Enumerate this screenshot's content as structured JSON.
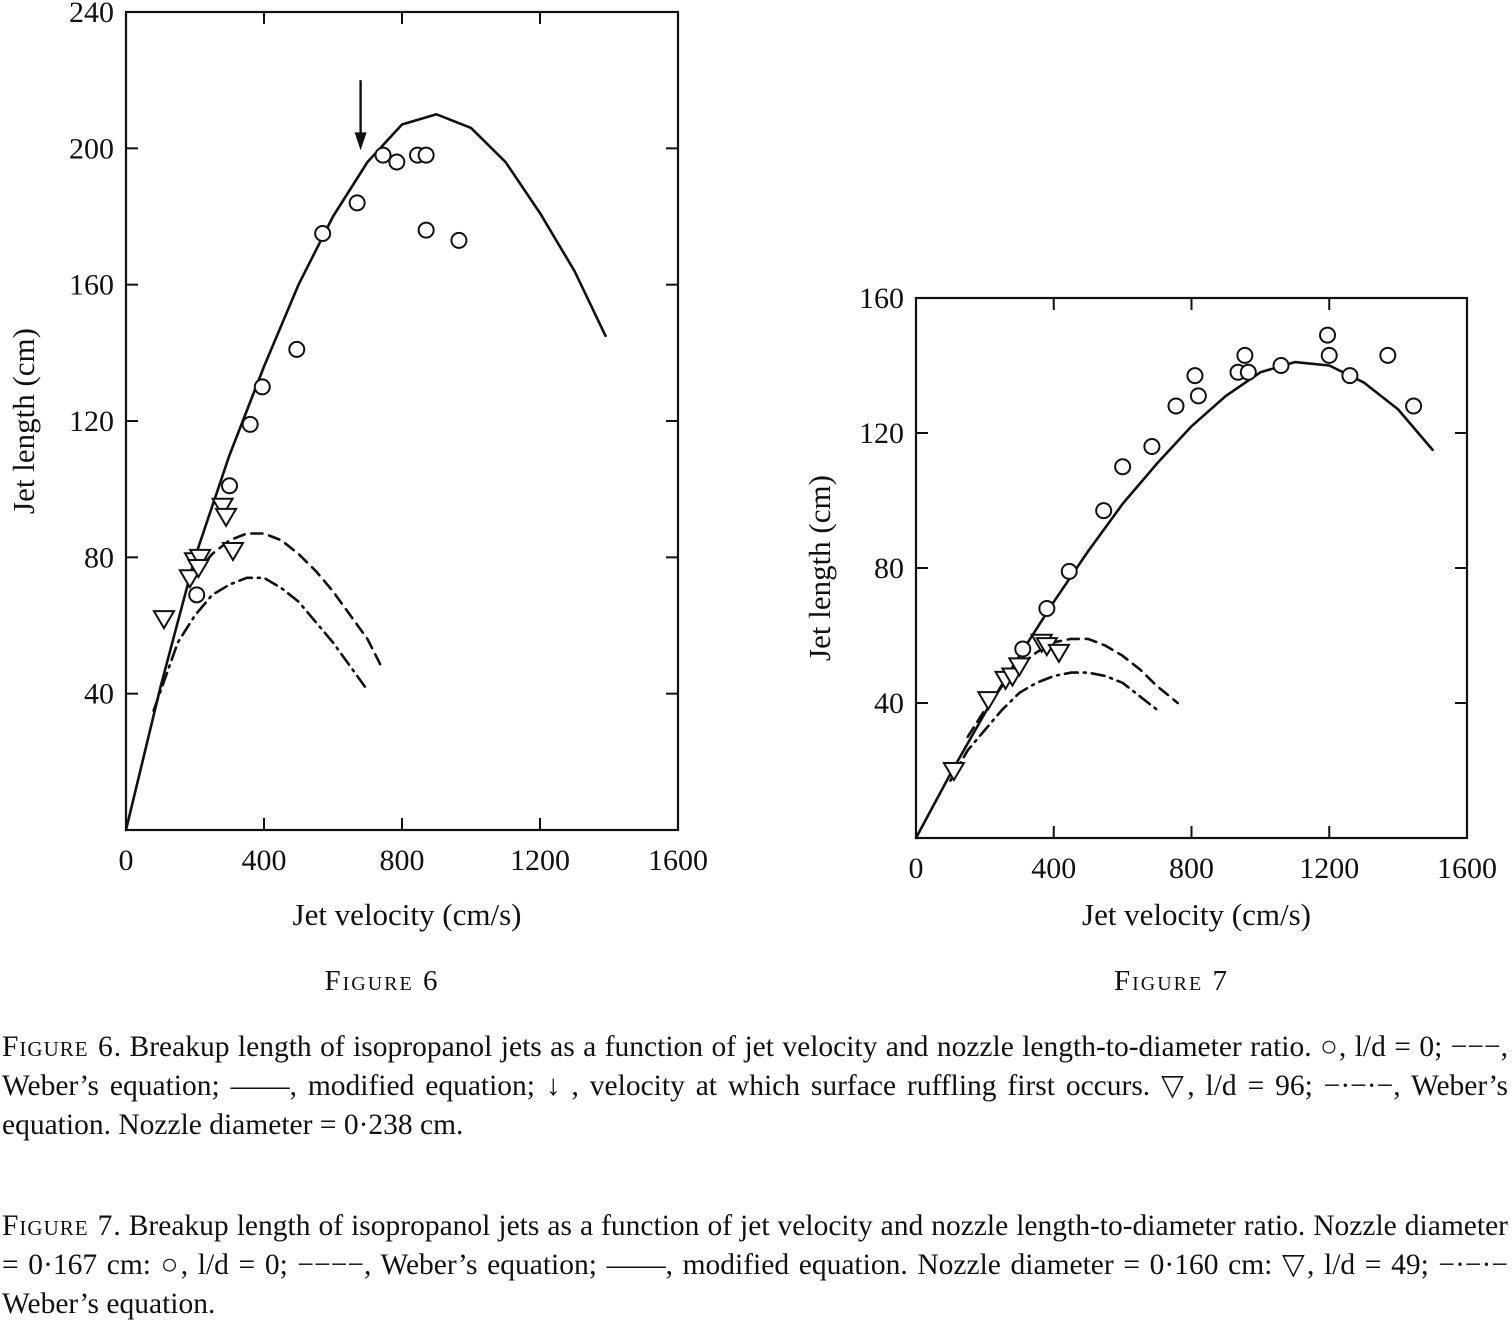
{
  "chart_data": [
    {
      "type": "line+scatter",
      "figure_label": "Figure 6",
      "xlabel": "Jet velocity (cm/s)",
      "ylabel": "Jet length (cm)",
      "xlim": [
        0,
        1600
      ],
      "ylim": [
        0,
        240
      ],
      "xticks": [
        0,
        400,
        800,
        1200,
        1600
      ],
      "yticks": [
        40,
        80,
        120,
        160,
        200,
        240
      ],
      "xtick_labels": [
        "0",
        "400",
        "800",
        "1200",
        "1600"
      ],
      "ytick_labels": [
        "40",
        "80",
        "120",
        "160",
        "200",
        "240"
      ],
      "series": [
        {
          "style": "solid-curve",
          "x": [
            0,
            100,
            200,
            300,
            400,
            500,
            600,
            700,
            800,
            900,
            1000,
            1100,
            1200,
            1300,
            1390
          ],
          "y": [
            0,
            42,
            80,
            110,
            136,
            160,
            180,
            196,
            207,
            210,
            206,
            196,
            181,
            164,
            145
          ]
        },
        {
          "style": "dashed-curve",
          "x": [
            200,
            250,
            300,
            350,
            400,
            450,
            500,
            550,
            600,
            650,
            700,
            740
          ],
          "y": [
            75,
            81,
            85,
            87,
            87,
            85,
            81,
            76,
            70,
            63,
            56,
            48
          ]
        },
        {
          "style": "dash-dot-curve",
          "x": [
            80,
            150,
            200,
            250,
            300,
            350,
            400,
            450,
            500,
            550,
            600,
            650,
            700
          ],
          "y": [
            35,
            55,
            63,
            69,
            72,
            74,
            74,
            71,
            67,
            61,
            55,
            48,
            41
          ]
        },
        {
          "style": "circle",
          "x": [
            205,
            300,
            360,
            395,
            495,
            570,
            670,
            745,
            785,
            845,
            870,
            870,
            965
          ],
          "y": [
            69,
            101,
            119,
            130,
            141,
            175,
            184,
            198,
            196,
            198,
            198,
            176,
            173
          ]
        },
        {
          "style": "triangle",
          "x": [
            110,
            185,
            200,
            215,
            210,
            280,
            290,
            310
          ],
          "y": [
            62,
            74,
            79,
            80,
            77,
            95,
            92,
            82
          ]
        }
      ],
      "annotations": [
        {
          "type": "arrow-down",
          "x": 680,
          "y_from": 220,
          "y_to": 200
        }
      ]
    },
    {
      "type": "line+scatter",
      "figure_label": "Figure 7",
      "xlabel": "Jet velocity (cm/s)",
      "ylabel": "Jet length (cm)",
      "xlim": [
        0,
        1600
      ],
      "ylim": [
        0,
        160
      ],
      "xticks": [
        0,
        400,
        800,
        1200,
        1600
      ],
      "yticks": [
        40,
        80,
        120,
        160
      ],
      "xtick_labels": [
        "0",
        "400",
        "800",
        "1200",
        "1600"
      ],
      "ytick_labels": [
        "40",
        "80",
        "120",
        "160"
      ],
      "series": [
        {
          "style": "solid-curve",
          "x": [
            0,
            100,
            200,
            300,
            400,
            500,
            600,
            700,
            800,
            900,
            1000,
            1100,
            1200,
            1300,
            1400,
            1500
          ],
          "y": [
            0,
            19,
            37,
            54,
            70,
            85,
            99,
            111,
            122,
            131,
            138,
            141,
            140,
            135,
            127,
            115
          ]
        },
        {
          "style": "dashed-curve",
          "x": [
            150,
            200,
            250,
            300,
            350,
            400,
            450,
            500,
            550,
            600,
            650,
            700,
            760
          ],
          "y": [
            30,
            38,
            45,
            51,
            55,
            58,
            59,
            59,
            57,
            54,
            50,
            45,
            40
          ]
        },
        {
          "style": "dash-dot-curve",
          "x": [
            100,
            150,
            200,
            250,
            300,
            350,
            400,
            450,
            500,
            550,
            600,
            650,
            700
          ],
          "y": [
            17,
            26,
            32,
            38,
            43,
            46,
            48,
            49,
            49,
            48,
            46,
            42,
            38
          ]
        },
        {
          "style": "circle",
          "x": [
            310,
            380,
            445,
            545,
            600,
            685,
            755,
            810,
            820,
            935,
            955,
            965,
            1060,
            1195,
            1200,
            1260,
            1370,
            1445
          ],
          "y": [
            56,
            68,
            79,
            97,
            110,
            116,
            128,
            137,
            131,
            138,
            143,
            138,
            140,
            149,
            143,
            137,
            143,
            128
          ]
        },
        {
          "style": "triangle",
          "x": [
            110,
            210,
            260,
            280,
            300,
            365,
            380,
            415
          ],
          "y": [
            20,
            41,
            47,
            48,
            51,
            58,
            57,
            55
          ]
        }
      ]
    }
  ],
  "captions": {
    "fig6_label": "Figure 6",
    "fig6_text": ". Breakup length of isopropanol jets as a function of jet velocity and nozzle length-to-diameter ratio. ○, l/d = 0; −−−, Weber’s equation; ——, modified equation; ↓ , velocity at which surface ruffling first occurs. ▽, l/d = 96; −·−·−, Weber’s equation. Nozzle diameter = 0·238 cm.",
    "fig7_label": "Figure 7",
    "fig7_text": ". Breakup length of isopropanol jets as a function of jet velocity and nozzle length-to-diameter ratio. Nozzle diameter = 0·167 cm: ○, l/d = 0; −−−−, Weber’s equation; ——, modified equation. Nozzle diameter = 0·160 cm: ▽, l/d = 49; −·−·− Weber’s equation."
  }
}
